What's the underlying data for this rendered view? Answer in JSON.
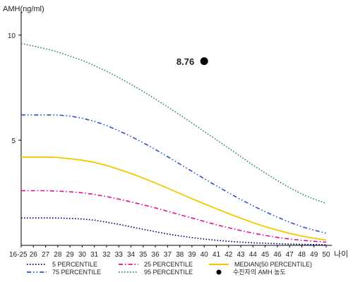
{
  "chart_data": {
    "type": "line",
    "ylabel": "AMH(ng/ml)",
    "xlabel": "나이",
    "categories": [
      "16-25",
      "26",
      "27",
      "28",
      "29",
      "30",
      "31",
      "32",
      "33",
      "34",
      "35",
      "36",
      "37",
      "38",
      "39",
      "40",
      "41",
      "42",
      "43",
      "44",
      "45",
      "46",
      "47",
      "48",
      "49",
      "50"
    ],
    "yticks": [
      5,
      10
    ],
    "ylim": [
      0,
      11
    ],
    "grid": false,
    "legend_position": "bottom",
    "series": [
      {
        "name": "5 PERCENTILE",
        "color": "#000080",
        "dash": "dotted",
        "values": [
          1.3,
          1.3,
          1.3,
          1.3,
          1.28,
          1.25,
          1.2,
          1.1,
          1.0,
          0.88,
          0.76,
          0.65,
          0.54,
          0.45,
          0.37,
          0.3,
          0.24,
          0.19,
          0.15,
          0.12,
          0.1,
          0.08,
          0.06,
          0.05,
          0.04,
          0.03
        ]
      },
      {
        "name": "25 PERCENTILE",
        "color": "#e0108f",
        "dash": "dash-dot",
        "values": [
          2.6,
          2.6,
          2.6,
          2.58,
          2.55,
          2.5,
          2.42,
          2.32,
          2.2,
          2.07,
          1.93,
          1.78,
          1.62,
          1.46,
          1.3,
          1.14,
          0.98,
          0.84,
          0.7,
          0.58,
          0.47,
          0.38,
          0.3,
          0.24,
          0.19,
          0.15
        ]
      },
      {
        "name": "MEDIAN(50 PERCENTILE)",
        "color": "#f2c800",
        "dash": "solid",
        "values": [
          4.2,
          4.2,
          4.2,
          4.18,
          4.12,
          4.05,
          3.95,
          3.8,
          3.62,
          3.42,
          3.2,
          2.96,
          2.72,
          2.47,
          2.22,
          1.98,
          1.74,
          1.51,
          1.29,
          1.08,
          0.89,
          0.72,
          0.57,
          0.44,
          0.34,
          0.25
        ]
      },
      {
        "name": "75 PERCENTILE",
        "color": "#3050c8",
        "dash": "dash-dot-dot",
        "values": [
          6.2,
          6.2,
          6.2,
          6.2,
          6.15,
          6.05,
          5.9,
          5.7,
          5.45,
          5.18,
          4.88,
          4.56,
          4.22,
          3.87,
          3.52,
          3.17,
          2.83,
          2.5,
          2.18,
          1.88,
          1.6,
          1.34,
          1.1,
          0.89,
          0.72,
          0.58
        ]
      },
      {
        "name": "95 PERCENTILE",
        "color": "#2e8b57",
        "dash": "dotted",
        "values": [
          9.6,
          9.48,
          9.35,
          9.2,
          9.0,
          8.8,
          8.55,
          8.28,
          7.98,
          7.66,
          7.32,
          6.96,
          6.59,
          6.21,
          5.82,
          5.42,
          5.02,
          4.62,
          4.22,
          3.82,
          3.44,
          3.08,
          2.74,
          2.44,
          2.2,
          2.0
        ]
      }
    ],
    "annotation": {
      "name": "수진자의 AMH 농도",
      "x": "40",
      "value": 8.76,
      "label": "8.76",
      "color": "#000000"
    }
  }
}
